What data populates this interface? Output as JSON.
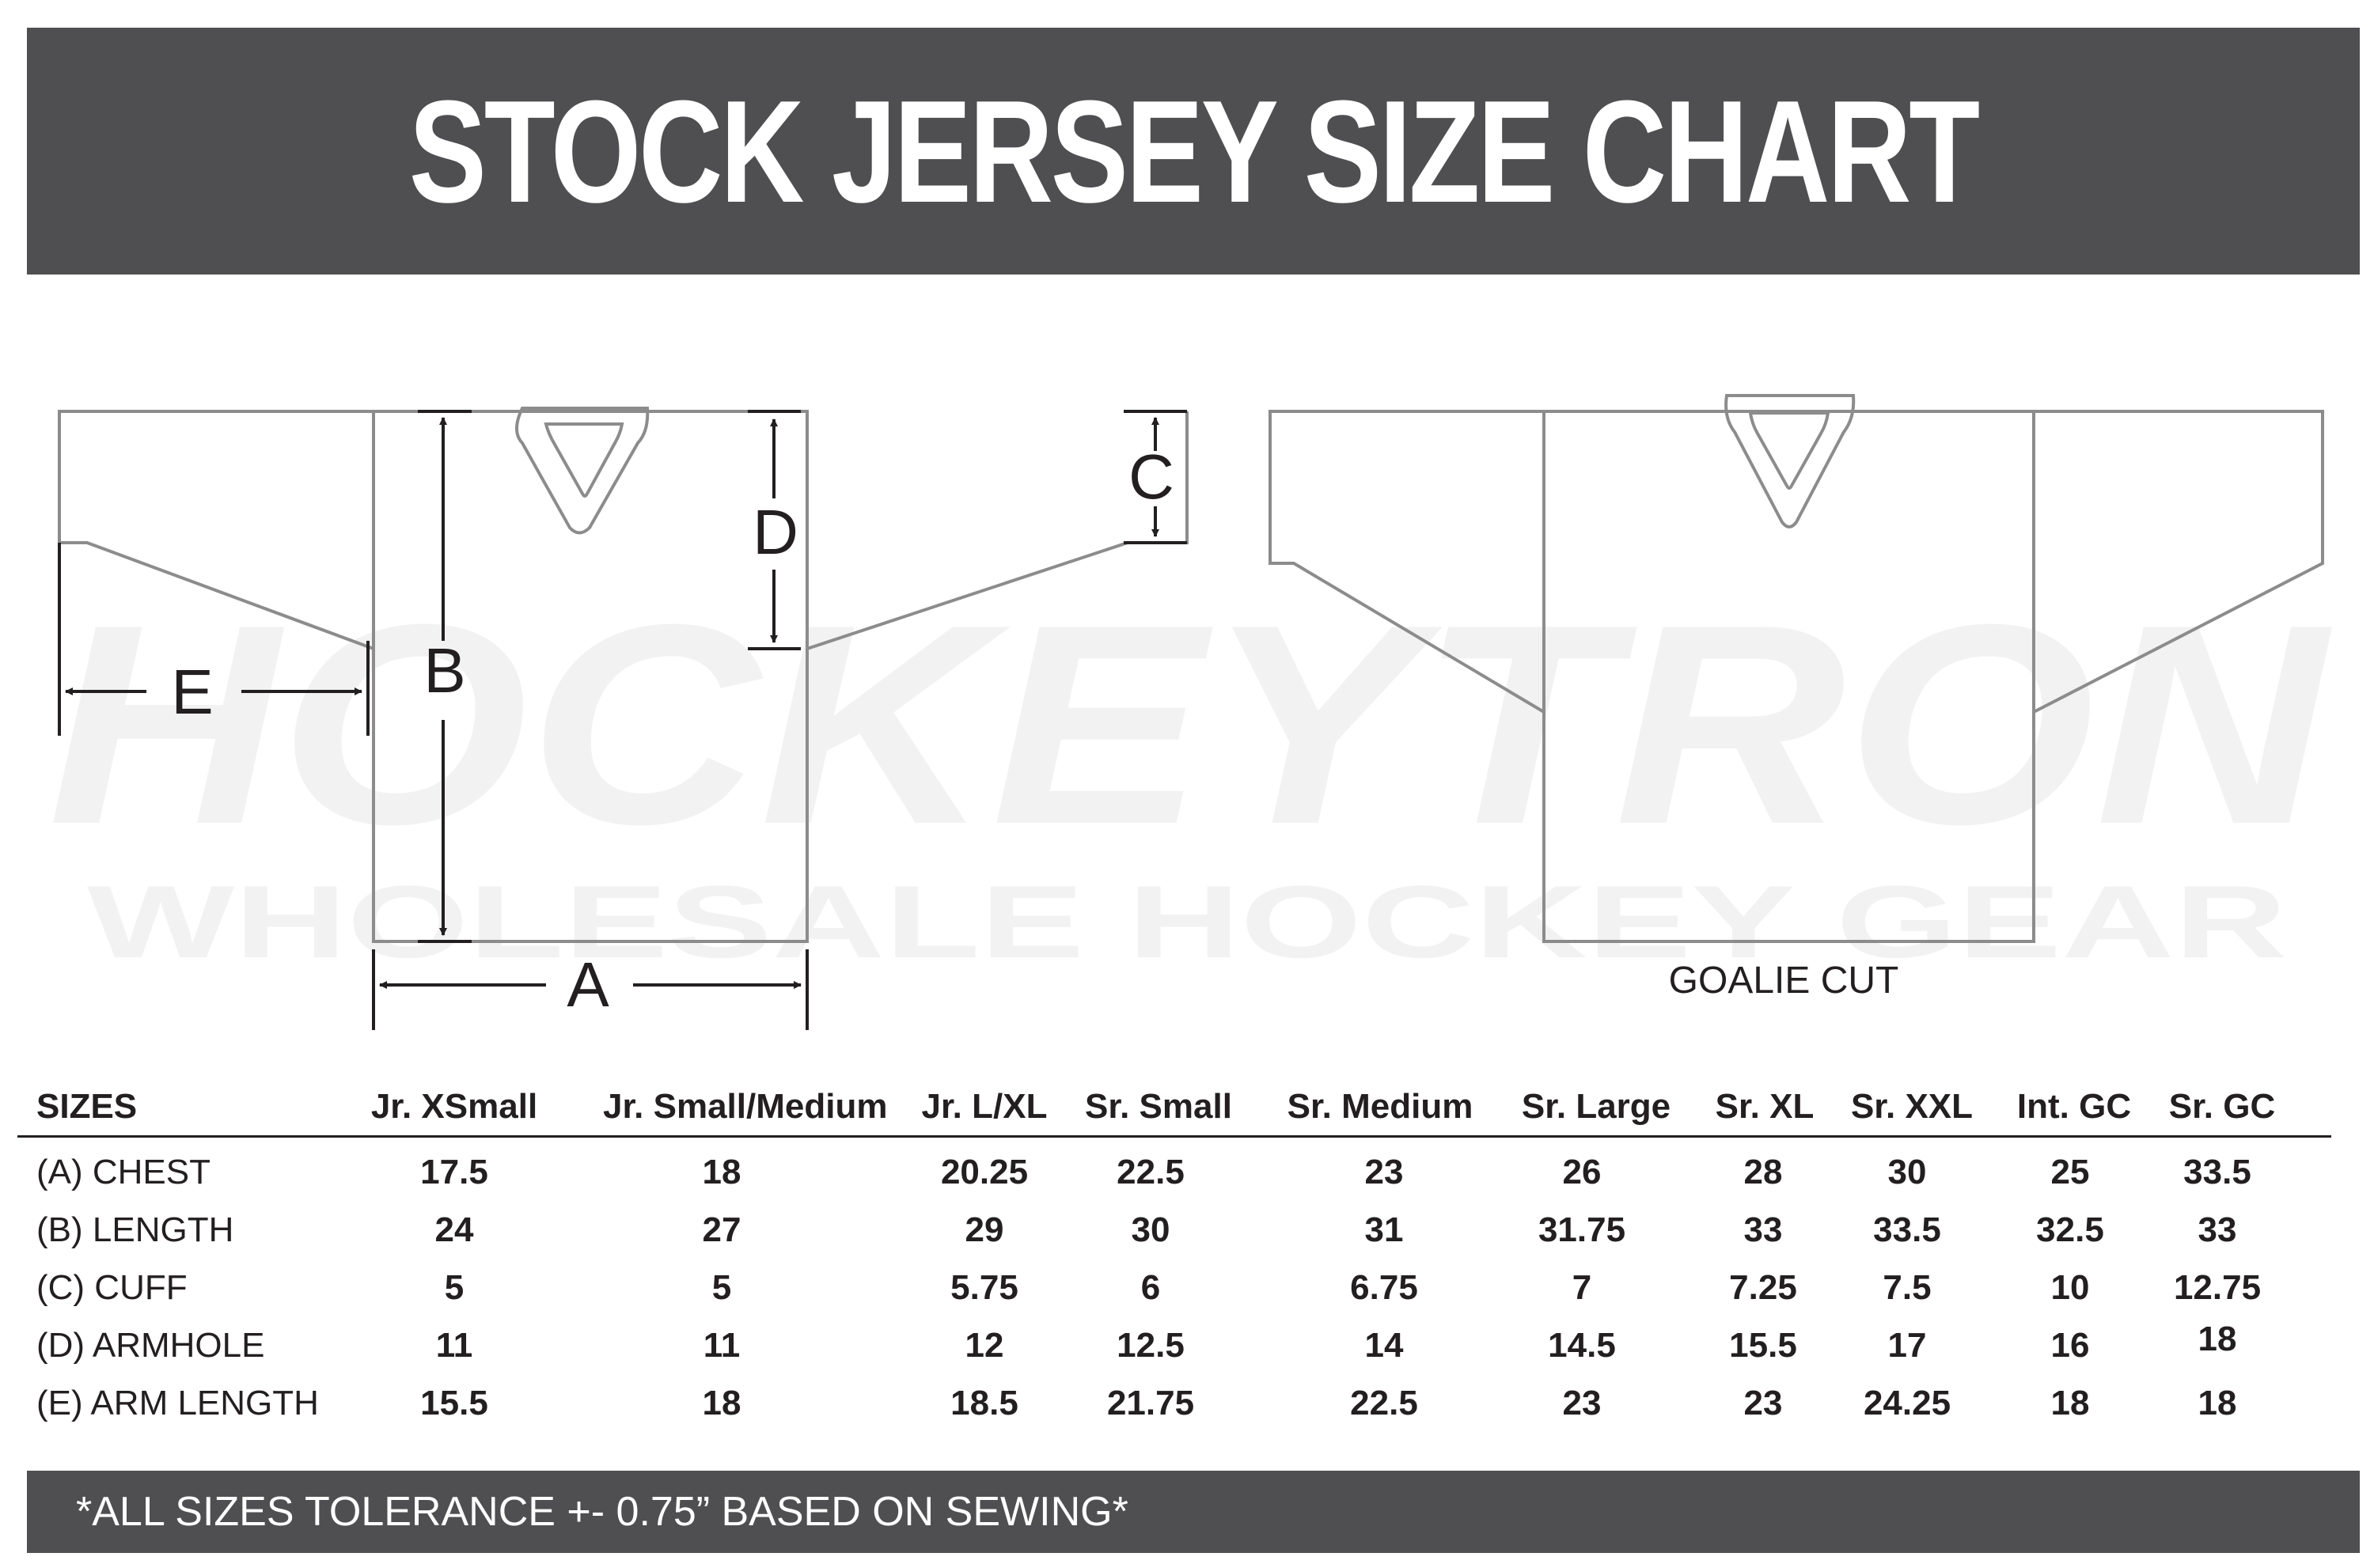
{
  "title": "STOCK JERSEY SIZE CHART",
  "watermark": {
    "brand": "HOCKEYTRON",
    "tagline": "WHOLESALE HOCKEY GEAR"
  },
  "diagram": {
    "dimension_labels": {
      "a": "A",
      "b": "B",
      "c": "C",
      "d": "D",
      "e": "E"
    },
    "goalie_caption": "GOALIE CUT"
  },
  "table": {
    "corner_label": "SIZES",
    "columns": [
      "Jr. XSmall",
      "Jr. Small/Medium",
      "Jr. L/XL",
      "Sr. Small",
      "Sr. Medium",
      "Sr. Large",
      "Sr. XL",
      "Sr. XXL",
      "Int. GC",
      "Sr. GC"
    ],
    "rows": [
      {
        "label": "(A) CHEST",
        "values": [
          "17.5",
          "18",
          "20.25",
          "22.5",
          "23",
          "26",
          "28",
          "30",
          "25",
          "33.5"
        ]
      },
      {
        "label": "(B) LENGTH",
        "values": [
          "24",
          "27",
          "29",
          "30",
          "31",
          "31.75",
          "33",
          "33.5",
          "32.5",
          "33"
        ]
      },
      {
        "label": "(C) CUFF",
        "values": [
          "5",
          "5",
          "5.75",
          "6",
          "6.75",
          "7",
          "7.25",
          "7.5",
          "10",
          "12.75"
        ]
      },
      {
        "label": "(D) ARMHOLE",
        "values": [
          "11",
          "11",
          "12",
          "12.5",
          "14",
          "14.5",
          "15.5",
          "17",
          "16",
          "18"
        ]
      },
      {
        "label": "(E) ARM LENGTH",
        "values": [
          "15.5",
          "18",
          "18.5",
          "21.75",
          "22.5",
          "23",
          "23",
          "24.25",
          "18",
          "18"
        ]
      }
    ]
  },
  "footer_note": "*ALL SIZES TOLERANCE +- 0.75” BASED ON SEWING*",
  "colors": {
    "banner": "#4f4f51",
    "text": "#231f20",
    "outline": "#8c8c8c",
    "watermark": "#f1f1f1"
  }
}
